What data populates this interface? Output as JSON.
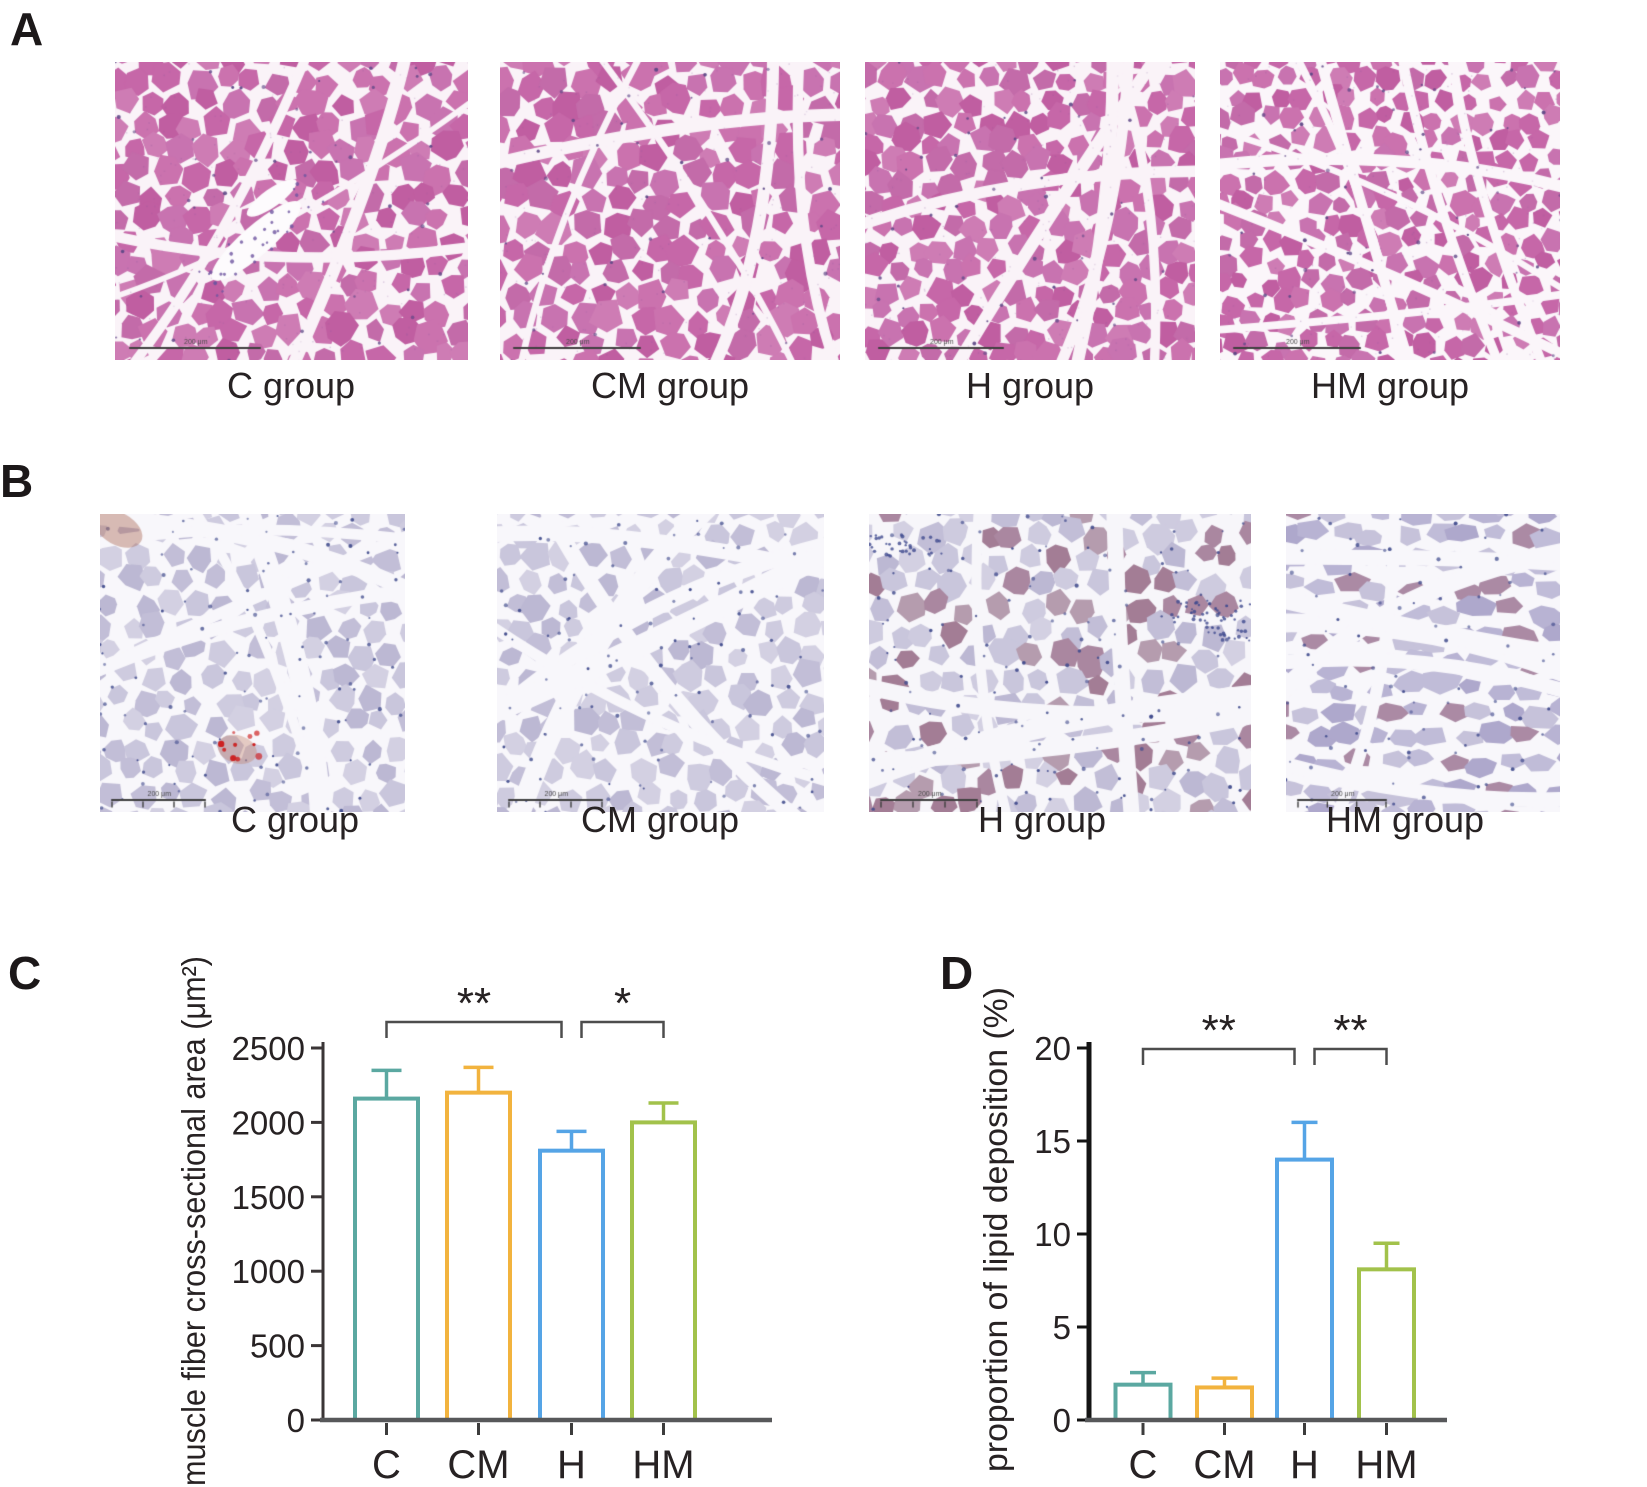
{
  "figure": {
    "panel_letters": [
      "A",
      "B",
      "C",
      "D"
    ],
    "row_a_captions": [
      "C group",
      "CM group",
      "H group",
      "HM group"
    ],
    "row_b_captions": [
      "C group",
      "CM group",
      "H group",
      "HM group"
    ],
    "scale_bar_label": "200 μm"
  },
  "chart_data": [
    {
      "type": "bar",
      "panel": "C",
      "title": "",
      "xlabel": "",
      "ylabel": "muscle fiber cross-sectional area (μm²)",
      "categories": [
        "C",
        "CM",
        "H",
        "HM"
      ],
      "values": [
        2160,
        2200,
        1810,
        2000
      ],
      "errors_plus": [
        190,
        170,
        130,
        130
      ],
      "bar_fill": "#ffffff",
      "bar_colors": [
        "#5ba8a1",
        "#f2b33e",
        "#55a4e6",
        "#a2c24b"
      ],
      "ylim": [
        0,
        2500
      ],
      "yticks": [
        0,
        500,
        1000,
        1500,
        2000,
        2500
      ],
      "grid": false,
      "legend": null,
      "significance": [
        {
          "from": "C",
          "to": "H",
          "label": "**"
        },
        {
          "from": "H",
          "to": "HM",
          "label": "*"
        }
      ]
    },
    {
      "type": "bar",
      "panel": "D",
      "title": "",
      "xlabel": "",
      "ylabel": "proportion of  lipid deposition (%)",
      "categories": [
        "C",
        "CM",
        "H",
        "HM"
      ],
      "values": [
        1.9,
        1.75,
        14.0,
        8.1
      ],
      "errors_plus": [
        0.65,
        0.5,
        2.0,
        1.4
      ],
      "bar_fill": "#ffffff",
      "bar_colors": [
        "#5ba8a1",
        "#f2b33e",
        "#55a4e6",
        "#a2c24b"
      ],
      "ylim": [
        0,
        20
      ],
      "yticks": [
        0,
        5,
        10,
        15,
        20
      ],
      "grid": false,
      "legend": null,
      "significance": [
        {
          "from": "C",
          "to": "H",
          "label": "**"
        },
        {
          "from": "H",
          "to": "HM",
          "label": "**"
        }
      ]
    }
  ]
}
